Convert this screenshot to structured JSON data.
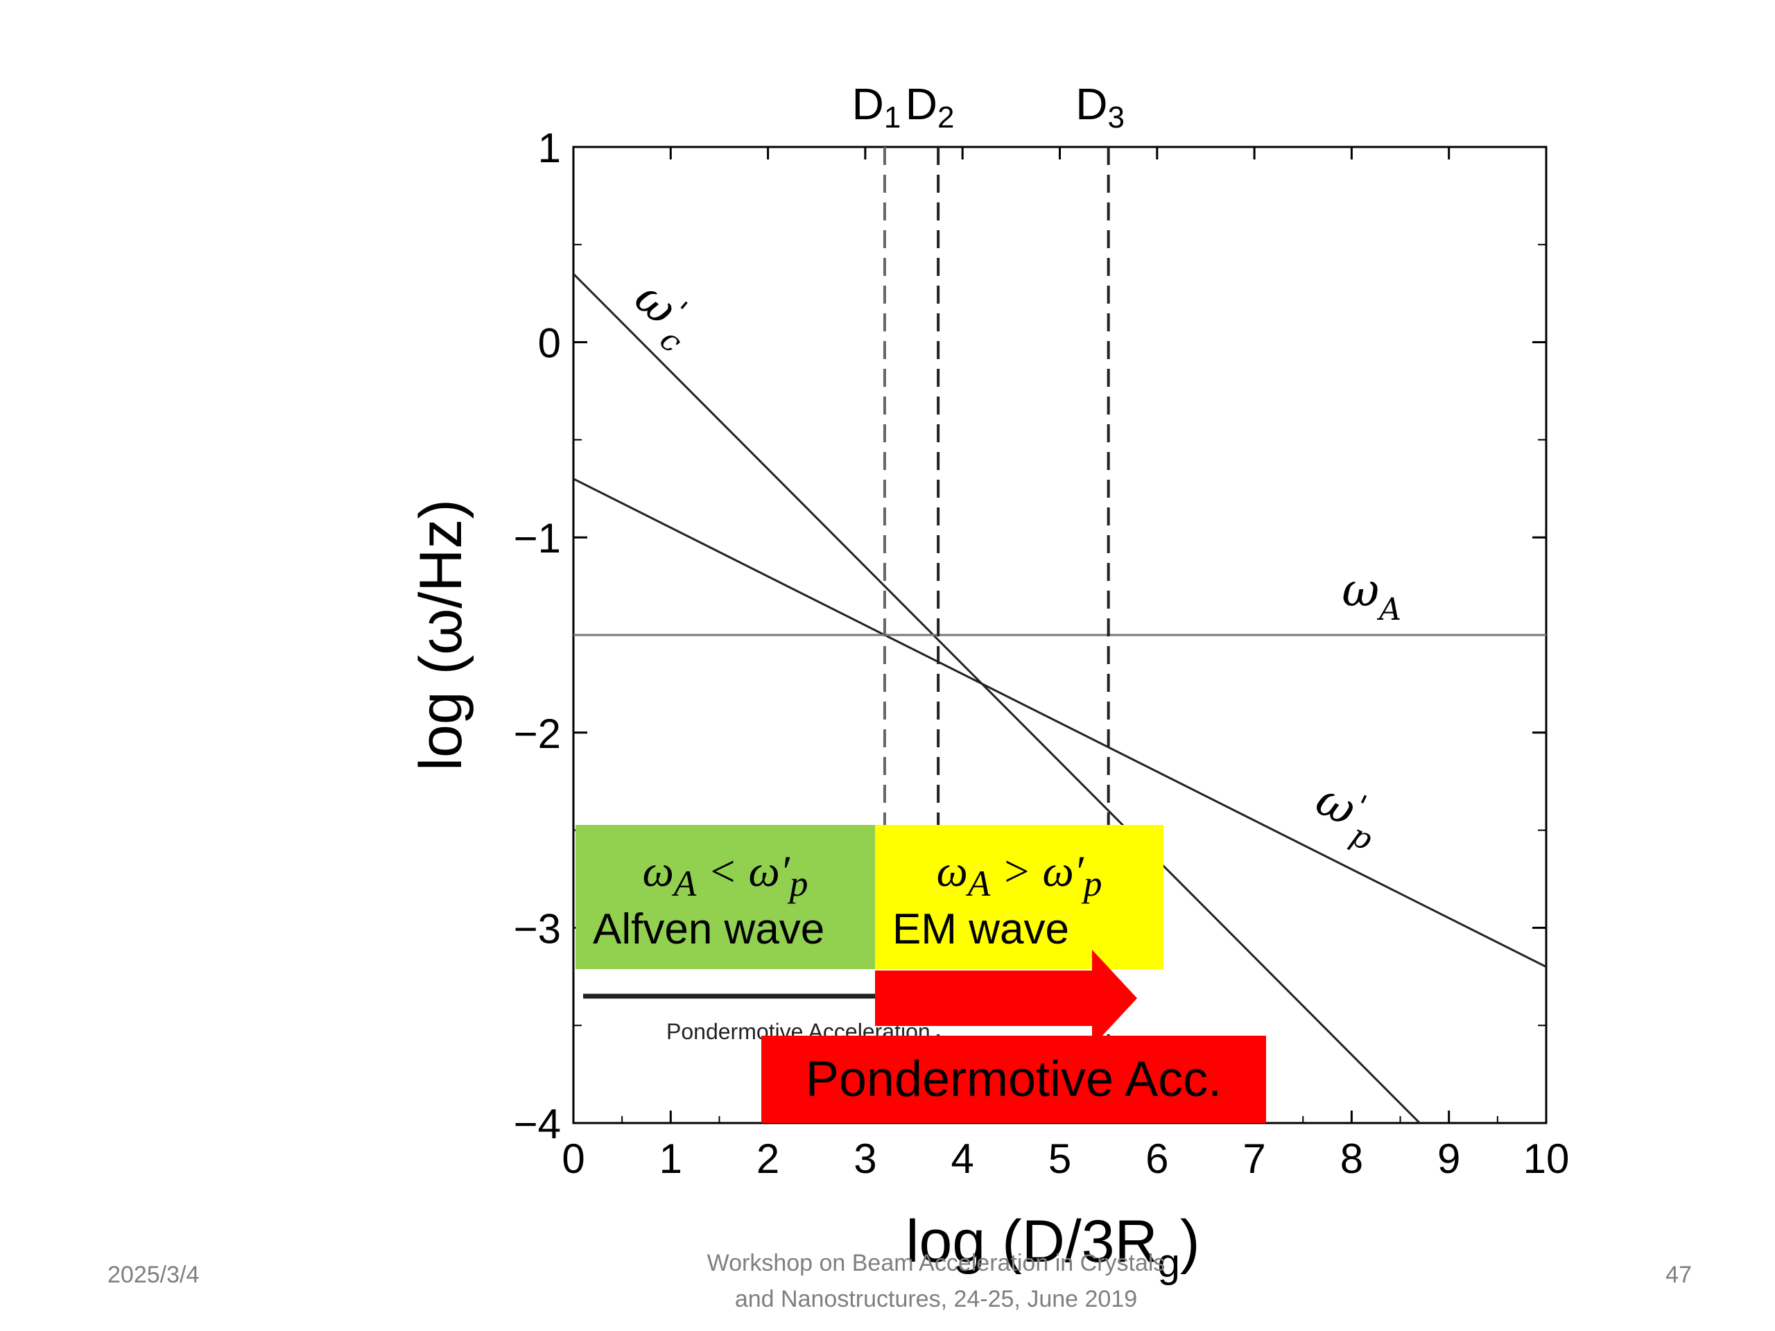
{
  "chart_data": {
    "type": "line",
    "xlabel": "log (D/3R",
    "xlabel_sub": "g",
    "xlabel_close": ")",
    "ylabel": "log (ω/Hz)",
    "xlim": [
      0,
      10
    ],
    "ylim": [
      -4,
      1
    ],
    "x_ticks": [
      "0",
      "1",
      "2",
      "3",
      "4",
      "5",
      "6",
      "7",
      "8",
      "9",
      "10"
    ],
    "y_ticks": [
      "1",
      "0",
      "−1",
      "−2",
      "−3",
      "−4"
    ],
    "y_tick_values": [
      1,
      0,
      -1,
      -2,
      -3,
      -4
    ],
    "grid": false,
    "series": [
      {
        "name": "ω'c",
        "x": [
          0,
          8.7
        ],
        "y": [
          0.35,
          -4.0
        ],
        "color": "#222222"
      },
      {
        "name": "ω'p",
        "x": [
          0,
          10
        ],
        "y": [
          -0.7,
          -3.2
        ],
        "color": "#222222"
      },
      {
        "name": "ωA",
        "x": [
          0,
          10
        ],
        "y": [
          -1.5,
          -1.5
        ],
        "color": "#777777"
      }
    ],
    "series_labels": [
      {
        "main": "ω",
        "sub": "c",
        "prime": "'",
        "x": 0.6,
        "y": 0.2,
        "rotate": 40
      },
      {
        "main": "ω",
        "sub": "p",
        "prime": "'",
        "x": 7.6,
        "y": -2.4,
        "rotate": 25
      },
      {
        "main": "ω",
        "sub": "A",
        "x": 7.9,
        "y": -1.35,
        "rotate": 0
      }
    ],
    "vertical_lines": [
      {
        "name": "D",
        "sub": "1",
        "x": 3.2,
        "color": "#666666"
      },
      {
        "name": "D",
        "sub": "2",
        "x": 3.75,
        "color": "#222222"
      },
      {
        "name": "D",
        "sub": "3",
        "x": 5.5,
        "color": "#222222"
      }
    ],
    "annotation_arrow": {
      "text": "Pondermotive Acceleration",
      "x_start": 0.1,
      "x_end": 5.3,
      "y": -3.35
    }
  },
  "overlays": {
    "alfven": {
      "condition": "ω_A < ω′_p",
      "cond_main1": "ω",
      "cond_sub1": "A",
      "cond_op": " < ω′",
      "cond_sub2": "p",
      "label": "Alfven wave",
      "color": "#92d050"
    },
    "em": {
      "condition": "ω_A > ω′_p",
      "cond_main1": "ω",
      "cond_sub1": "A",
      "cond_op": " > ω′",
      "cond_sub2": "p",
      "label": "EM wave",
      "color": "#ffff00"
    },
    "acc_label": "Pondermotive Acc.",
    "acc_color": "#ff0000"
  },
  "footer": {
    "date": "2025/3/4",
    "title_line1": "Workshop on Beam Acceleration in Crystals",
    "title_line2": "and Nanostructures, 24-25, June 2019",
    "page": "47"
  }
}
